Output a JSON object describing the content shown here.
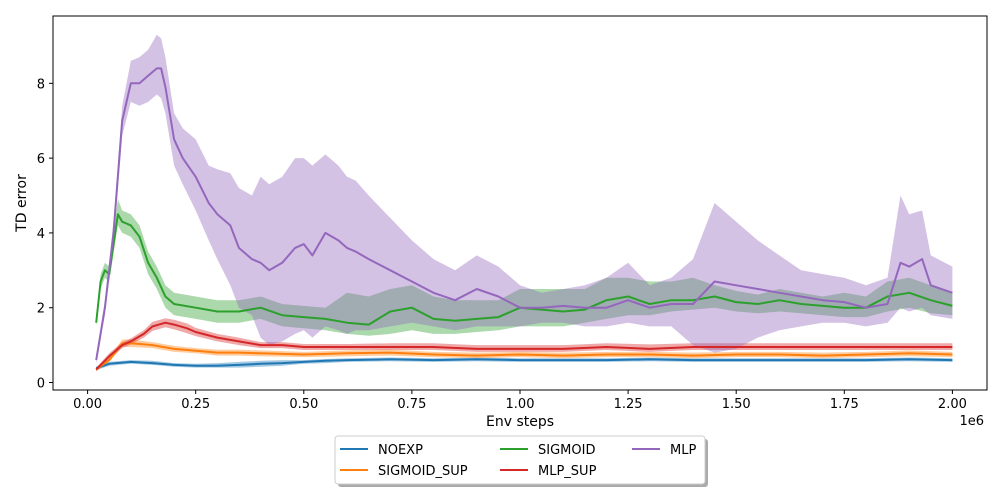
{
  "chart_data": {
    "type": "line",
    "title": "",
    "xlabel": "Env steps",
    "ylabel": "TD error",
    "x_offset_label": "1e6",
    "xlim": [
      -0.08,
      2.08
    ],
    "ylim": [
      -0.2,
      9.8
    ],
    "xticks": [
      0.0,
      0.25,
      0.5,
      0.75,
      1.0,
      1.25,
      1.5,
      1.75,
      2.0
    ],
    "xtick_labels": [
      "0.00",
      "0.25",
      "0.50",
      "0.75",
      "1.00",
      "1.25",
      "1.50",
      "1.75",
      "2.00"
    ],
    "yticks": [
      0,
      2,
      4,
      6,
      8
    ],
    "ytick_labels": [
      "0",
      "2",
      "4",
      "6",
      "8"
    ],
    "grid": false,
    "legend_placement": "bottom-center",
    "series": [
      {
        "name": "NOEXP",
        "color": "#1f77b4",
        "x": [
          0.02,
          0.05,
          0.1,
          0.15,
          0.2,
          0.25,
          0.3,
          0.35,
          0.4,
          0.45,
          0.5,
          0.55,
          0.6,
          0.7,
          0.8,
          0.9,
          1.0,
          1.1,
          1.2,
          1.3,
          1.4,
          1.5,
          1.6,
          1.7,
          1.8,
          1.9,
          2.0
        ],
        "y": [
          0.38,
          0.5,
          0.55,
          0.52,
          0.47,
          0.45,
          0.45,
          0.47,
          0.5,
          0.52,
          0.55,
          0.58,
          0.6,
          0.62,
          0.6,
          0.62,
          0.6,
          0.6,
          0.6,
          0.62,
          0.6,
          0.6,
          0.6,
          0.6,
          0.6,
          0.62,
          0.6
        ],
        "lower": [
          0.33,
          0.45,
          0.5,
          0.47,
          0.42,
          0.4,
          0.4,
          0.4,
          0.42,
          0.45,
          0.5,
          0.52,
          0.55,
          0.57,
          0.55,
          0.57,
          0.55,
          0.55,
          0.55,
          0.57,
          0.55,
          0.55,
          0.55,
          0.55,
          0.55,
          0.57,
          0.55
        ],
        "upper": [
          0.43,
          0.55,
          0.6,
          0.58,
          0.52,
          0.5,
          0.52,
          0.55,
          0.58,
          0.6,
          0.6,
          0.63,
          0.65,
          0.67,
          0.65,
          0.67,
          0.65,
          0.65,
          0.65,
          0.67,
          0.65,
          0.65,
          0.65,
          0.65,
          0.65,
          0.67,
          0.65
        ]
      },
      {
        "name": "SIGMOID_SUP",
        "color": "#ff7f0e",
        "x": [
          0.02,
          0.05,
          0.08,
          0.1,
          0.15,
          0.2,
          0.25,
          0.3,
          0.35,
          0.4,
          0.5,
          0.6,
          0.7,
          0.8,
          0.9,
          1.0,
          1.1,
          1.2,
          1.3,
          1.4,
          1.5,
          1.6,
          1.7,
          1.8,
          1.9,
          2.0
        ],
        "y": [
          0.35,
          0.6,
          1.05,
          1.05,
          1.0,
          0.9,
          0.85,
          0.8,
          0.8,
          0.78,
          0.75,
          0.78,
          0.8,
          0.75,
          0.72,
          0.75,
          0.72,
          0.75,
          0.75,
          0.72,
          0.75,
          0.75,
          0.72,
          0.75,
          0.78,
          0.75
        ],
        "lower": [
          0.3,
          0.55,
          0.95,
          0.95,
          0.92,
          0.82,
          0.78,
          0.72,
          0.72,
          0.7,
          0.68,
          0.7,
          0.72,
          0.68,
          0.65,
          0.68,
          0.65,
          0.68,
          0.68,
          0.65,
          0.68,
          0.68,
          0.65,
          0.68,
          0.7,
          0.68
        ],
        "upper": [
          0.4,
          0.65,
          1.15,
          1.15,
          1.08,
          0.98,
          0.92,
          0.88,
          0.88,
          0.86,
          0.82,
          0.86,
          0.88,
          0.82,
          0.8,
          0.82,
          0.8,
          0.82,
          0.82,
          0.8,
          0.82,
          0.82,
          0.8,
          0.82,
          0.86,
          0.82
        ]
      },
      {
        "name": "SIGMOID",
        "color": "#2ca02c",
        "x": [
          0.02,
          0.03,
          0.04,
          0.05,
          0.07,
          0.08,
          0.1,
          0.12,
          0.14,
          0.16,
          0.18,
          0.2,
          0.25,
          0.3,
          0.35,
          0.4,
          0.45,
          0.5,
          0.55,
          0.6,
          0.65,
          0.7,
          0.75,
          0.8,
          0.85,
          0.9,
          0.95,
          1.0,
          1.05,
          1.1,
          1.15,
          1.2,
          1.25,
          1.3,
          1.35,
          1.4,
          1.45,
          1.5,
          1.55,
          1.6,
          1.65,
          1.7,
          1.75,
          1.8,
          1.85,
          1.9,
          1.95,
          2.0
        ],
        "y": [
          1.6,
          2.7,
          3.0,
          2.9,
          4.5,
          4.3,
          4.2,
          3.9,
          3.2,
          2.8,
          2.3,
          2.1,
          2.0,
          1.9,
          1.9,
          2.0,
          1.8,
          1.75,
          1.7,
          1.6,
          1.55,
          1.9,
          2.0,
          1.7,
          1.65,
          1.7,
          1.75,
          2.0,
          1.95,
          1.9,
          1.95,
          2.2,
          2.3,
          2.1,
          2.2,
          2.2,
          2.3,
          2.15,
          2.1,
          2.2,
          2.1,
          2.05,
          2.0,
          2.0,
          2.3,
          2.4,
          2.2,
          2.05
        ],
        "lower": [
          1.5,
          2.5,
          2.8,
          2.7,
          4.2,
          4.0,
          3.9,
          3.6,
          2.9,
          2.5,
          2.0,
          1.8,
          1.7,
          1.6,
          1.6,
          1.7,
          1.5,
          1.45,
          1.4,
          1.3,
          1.25,
          1.3,
          1.4,
          1.3,
          1.3,
          1.35,
          1.4,
          1.5,
          1.5,
          1.5,
          1.6,
          1.7,
          1.8,
          1.8,
          1.9,
          1.95,
          2.0,
          1.9,
          1.85,
          1.9,
          1.85,
          1.8,
          1.75,
          1.75,
          1.9,
          2.0,
          1.85,
          1.8
        ],
        "upper": [
          1.7,
          2.9,
          3.2,
          3.1,
          4.9,
          4.6,
          4.5,
          4.2,
          3.5,
          3.1,
          2.6,
          2.4,
          2.3,
          2.2,
          2.2,
          2.3,
          2.1,
          2.05,
          2.0,
          2.4,
          2.3,
          2.5,
          2.6,
          2.3,
          2.2,
          2.2,
          2.2,
          2.5,
          2.5,
          2.5,
          2.5,
          2.8,
          2.8,
          2.7,
          2.7,
          2.8,
          2.6,
          2.45,
          2.35,
          2.5,
          2.4,
          2.3,
          2.4,
          2.3,
          2.7,
          2.8,
          2.6,
          2.4
        ]
      },
      {
        "name": "MLP_SUP",
        "color": "#d62728",
        "x": [
          0.02,
          0.05,
          0.08,
          0.1,
          0.13,
          0.15,
          0.18,
          0.2,
          0.23,
          0.25,
          0.3,
          0.35,
          0.4,
          0.45,
          0.5,
          0.6,
          0.7,
          0.8,
          0.9,
          1.0,
          1.1,
          1.2,
          1.3,
          1.4,
          1.5,
          1.6,
          1.7,
          1.8,
          1.9,
          2.0
        ],
        "y": [
          0.35,
          0.7,
          1.0,
          1.1,
          1.3,
          1.5,
          1.6,
          1.55,
          1.45,
          1.35,
          1.2,
          1.1,
          1.0,
          1.0,
          0.95,
          0.95,
          0.95,
          0.95,
          0.9,
          0.9,
          0.9,
          0.95,
          0.9,
          0.95,
          0.95,
          0.95,
          0.95,
          0.95,
          0.95,
          0.95
        ],
        "lower": [
          0.3,
          0.62,
          0.92,
          1.02,
          1.2,
          1.38,
          1.48,
          1.42,
          1.32,
          1.24,
          1.1,
          1.0,
          0.92,
          0.92,
          0.87,
          0.87,
          0.87,
          0.87,
          0.82,
          0.82,
          0.82,
          0.87,
          0.82,
          0.87,
          0.87,
          0.87,
          0.87,
          0.87,
          0.87,
          0.87
        ],
        "upper": [
          0.4,
          0.78,
          1.08,
          1.18,
          1.4,
          1.62,
          1.72,
          1.68,
          1.58,
          1.46,
          1.3,
          1.2,
          1.08,
          1.08,
          1.03,
          1.03,
          1.05,
          1.05,
          1.0,
          1.0,
          1.0,
          1.05,
          1.02,
          1.05,
          1.05,
          1.05,
          1.05,
          1.05,
          1.05,
          1.05
        ]
      },
      {
        "name": "MLP",
        "color": "#9467bd",
        "x": [
          0.02,
          0.04,
          0.06,
          0.08,
          0.1,
          0.12,
          0.14,
          0.16,
          0.17,
          0.18,
          0.2,
          0.22,
          0.25,
          0.28,
          0.3,
          0.33,
          0.35,
          0.38,
          0.4,
          0.42,
          0.45,
          0.48,
          0.5,
          0.52,
          0.55,
          0.58,
          0.6,
          0.62,
          0.65,
          0.7,
          0.75,
          0.8,
          0.85,
          0.9,
          0.95,
          1.0,
          1.05,
          1.1,
          1.15,
          1.2,
          1.25,
          1.3,
          1.35,
          1.4,
          1.45,
          1.5,
          1.55,
          1.6,
          1.65,
          1.7,
          1.75,
          1.8,
          1.85,
          1.88,
          1.9,
          1.93,
          1.95,
          2.0
        ],
        "y": [
          0.6,
          2.0,
          4.0,
          7.0,
          8.0,
          8.0,
          8.2,
          8.4,
          8.4,
          7.9,
          6.5,
          6.0,
          5.5,
          4.8,
          4.5,
          4.2,
          3.6,
          3.3,
          3.2,
          3.0,
          3.2,
          3.6,
          3.7,
          3.4,
          4.0,
          3.8,
          3.6,
          3.5,
          3.3,
          3.0,
          2.7,
          2.4,
          2.2,
          2.5,
          2.3,
          2.0,
          2.0,
          2.05,
          2.0,
          2.0,
          2.2,
          2.0,
          2.1,
          2.1,
          2.7,
          2.6,
          2.5,
          2.4,
          2.3,
          2.2,
          2.15,
          2.0,
          2.1,
          3.2,
          3.1,
          3.3,
          2.6,
          2.4
        ],
        "lower": [
          0.5,
          1.8,
          3.7,
          6.6,
          7.5,
          7.4,
          7.5,
          7.7,
          7.6,
          7.2,
          5.8,
          5.3,
          4.6,
          3.8,
          3.3,
          2.6,
          2.0,
          1.8,
          1.2,
          1.0,
          1.1,
          1.3,
          1.4,
          1.2,
          1.5,
          1.4,
          1.3,
          1.4,
          1.4,
          1.5,
          1.6,
          1.5,
          1.4,
          1.5,
          1.5,
          1.5,
          1.6,
          1.6,
          1.5,
          1.5,
          1.6,
          1.5,
          1.5,
          1.0,
          0.8,
          0.9,
          1.2,
          1.4,
          1.5,
          1.6,
          1.6,
          1.5,
          1.6,
          2.0,
          1.9,
          2.0,
          1.8,
          1.7
        ],
        "upper": [
          0.7,
          2.2,
          4.3,
          7.4,
          8.6,
          8.7,
          8.9,
          9.3,
          9.2,
          8.7,
          7.2,
          6.8,
          6.5,
          5.8,
          5.7,
          5.6,
          5.2,
          5.0,
          5.5,
          5.3,
          5.5,
          6.0,
          6.0,
          5.8,
          6.1,
          5.8,
          5.5,
          5.4,
          5.0,
          4.4,
          3.8,
          3.3,
          3.0,
          3.4,
          3.1,
          2.6,
          2.4,
          2.5,
          2.6,
          2.8,
          3.2,
          2.6,
          2.8,
          3.3,
          4.8,
          4.3,
          3.8,
          3.4,
          3.0,
          2.9,
          2.8,
          2.6,
          2.8,
          5.0,
          4.5,
          4.6,
          3.4,
          3.1
        ]
      }
    ]
  }
}
